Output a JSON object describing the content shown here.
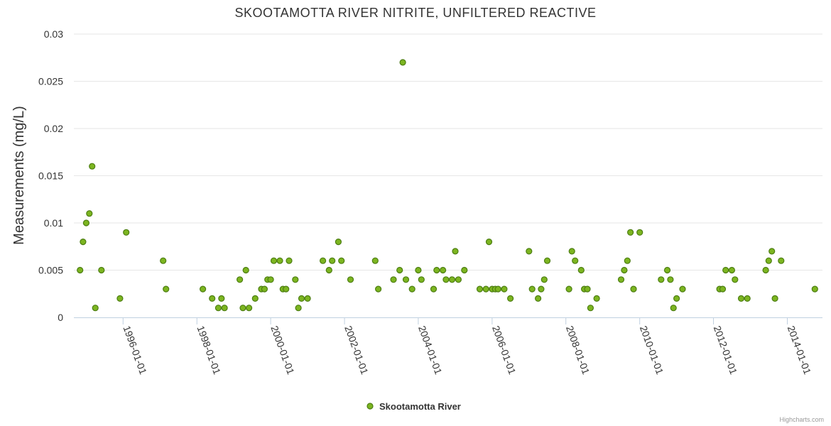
{
  "chart_data": {
    "type": "scatter",
    "title": "SKOOTAMOTTA RIVER NITRITE, UNFILTERED REACTIVE",
    "xlabel": "",
    "ylabel": "Measurements (mg/L)",
    "ylim": [
      0,
      0.03
    ],
    "xlim": [
      "1994-09-01",
      "2014-12-15"
    ],
    "y_ticks": [
      "0",
      "0.005",
      "0.01",
      "0.015",
      "0.02",
      "0.025",
      "0.03"
    ],
    "x_ticks": [
      "1996-01-01",
      "1998-01-01",
      "2000-01-01",
      "2002-01-01",
      "2004-01-01",
      "2006-01-01",
      "2008-01-01",
      "2010-01-01",
      "2012-01-01",
      "2014-01-01"
    ],
    "grid": true,
    "legend": "bottom-center",
    "series_color": "#7cb520",
    "series": [
      {
        "name": "Skootamotta River",
        "points": [
          [
            "1994-11-01",
            0.005
          ],
          [
            "1994-12-01",
            0.008
          ],
          [
            "1995-01-01",
            0.01
          ],
          [
            "1995-02-01",
            0.011
          ],
          [
            "1995-03-01",
            0.016
          ],
          [
            "1995-04-01",
            0.001
          ],
          [
            "1995-06-01",
            0.005
          ],
          [
            "1995-12-01",
            0.002
          ],
          [
            "1996-02-01",
            0.009
          ],
          [
            "1997-02-01",
            0.006
          ],
          [
            "1997-03-01",
            0.003
          ],
          [
            "1998-03-01",
            0.003
          ],
          [
            "1998-06-01",
            0.002
          ],
          [
            "1998-08-01",
            0.001
          ],
          [
            "1998-09-01",
            0.002
          ],
          [
            "1998-10-01",
            0.001
          ],
          [
            "1999-03-01",
            0.004
          ],
          [
            "1999-04-01",
            0.001
          ],
          [
            "1999-05-01",
            0.005
          ],
          [
            "1999-06-01",
            0.001
          ],
          [
            "1999-08-01",
            0.002
          ],
          [
            "1999-10-01",
            0.003
          ],
          [
            "1999-11-01",
            0.003
          ],
          [
            "1999-12-01",
            0.004
          ],
          [
            "2000-01-01",
            0.004
          ],
          [
            "2000-02-01",
            0.006
          ],
          [
            "2000-04-01",
            0.006
          ],
          [
            "2000-05-01",
            0.003
          ],
          [
            "2000-06-01",
            0.003
          ],
          [
            "2000-07-01",
            0.006
          ],
          [
            "2000-09-01",
            0.004
          ],
          [
            "2000-10-01",
            0.001
          ],
          [
            "2000-11-01",
            0.002
          ],
          [
            "2001-01-01",
            0.002
          ],
          [
            "2001-06-01",
            0.006
          ],
          [
            "2001-08-01",
            0.005
          ],
          [
            "2001-09-01",
            0.006
          ],
          [
            "2001-11-01",
            0.008
          ],
          [
            "2001-12-01",
            0.006
          ],
          [
            "2002-03-01",
            0.004
          ],
          [
            "2002-11-01",
            0.006
          ],
          [
            "2002-12-01",
            0.003
          ],
          [
            "2003-05-01",
            0.004
          ],
          [
            "2003-07-01",
            0.005
          ],
          [
            "2003-08-01",
            0.027
          ],
          [
            "2003-09-01",
            0.004
          ],
          [
            "2003-11-01",
            0.003
          ],
          [
            "2004-01-01",
            0.005
          ],
          [
            "2004-02-01",
            0.004
          ],
          [
            "2004-06-01",
            0.003
          ],
          [
            "2004-07-01",
            0.005
          ],
          [
            "2004-09-01",
            0.005
          ],
          [
            "2004-10-01",
            0.004
          ],
          [
            "2004-12-01",
            0.004
          ],
          [
            "2005-01-01",
            0.007
          ],
          [
            "2005-02-01",
            0.004
          ],
          [
            "2005-04-01",
            0.005
          ],
          [
            "2005-09-01",
            0.003
          ],
          [
            "2005-11-01",
            0.003
          ],
          [
            "2005-12-01",
            0.008
          ],
          [
            "2006-01-01",
            0.003
          ],
          [
            "2006-02-01",
            0.003
          ],
          [
            "2006-03-01",
            0.003
          ],
          [
            "2006-05-01",
            0.003
          ],
          [
            "2006-07-01",
            0.002
          ],
          [
            "2007-01-01",
            0.007
          ],
          [
            "2007-02-01",
            0.003
          ],
          [
            "2007-04-01",
            0.002
          ],
          [
            "2007-05-01",
            0.003
          ],
          [
            "2007-06-01",
            0.004
          ],
          [
            "2007-07-01",
            0.006
          ],
          [
            "2008-02-01",
            0.003
          ],
          [
            "2008-03-01",
            0.007
          ],
          [
            "2008-04-01",
            0.006
          ],
          [
            "2008-06-01",
            0.005
          ],
          [
            "2008-07-01",
            0.003
          ],
          [
            "2008-08-01",
            0.003
          ],
          [
            "2008-09-01",
            0.001
          ],
          [
            "2008-11-01",
            0.002
          ],
          [
            "2009-07-01",
            0.004
          ],
          [
            "2009-08-01",
            0.005
          ],
          [
            "2009-09-01",
            0.006
          ],
          [
            "2009-10-01",
            0.009
          ],
          [
            "2009-11-01",
            0.003
          ],
          [
            "2010-01-01",
            0.009
          ],
          [
            "2010-08-01",
            0.004
          ],
          [
            "2010-10-01",
            0.005
          ],
          [
            "2010-11-01",
            0.004
          ],
          [
            "2010-12-01",
            0.001
          ],
          [
            "2011-01-01",
            0.002
          ],
          [
            "2011-03-01",
            0.003
          ],
          [
            "2012-03-01",
            0.003
          ],
          [
            "2012-04-01",
            0.003
          ],
          [
            "2012-05-01",
            0.005
          ],
          [
            "2012-07-01",
            0.005
          ],
          [
            "2012-08-01",
            0.004
          ],
          [
            "2012-10-01",
            0.002
          ],
          [
            "2012-12-01",
            0.002
          ],
          [
            "2013-06-01",
            0.005
          ],
          [
            "2013-07-01",
            0.006
          ],
          [
            "2013-08-01",
            0.007
          ],
          [
            "2013-09-01",
            0.002
          ],
          [
            "2013-11-01",
            0.006
          ],
          [
            "2014-10-01",
            0.003
          ]
        ]
      }
    ]
  },
  "credits": "Highcharts.com"
}
